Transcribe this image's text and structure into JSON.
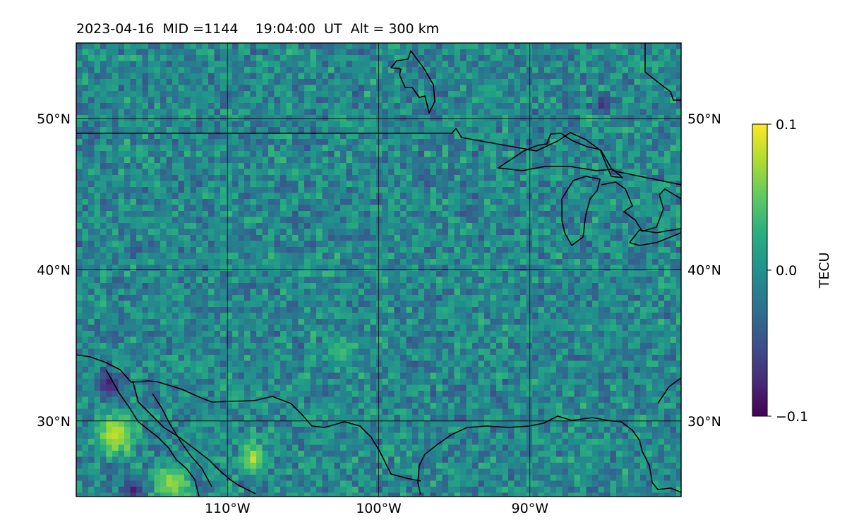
{
  "header": {
    "title": "2023-04-16  MID =1144    19:04:00  UT  Alt = 300 km"
  },
  "map": {
    "projection": "plate-carree",
    "lon_range": [
      -120,
      -80
    ],
    "lat_range": [
      25,
      55
    ],
    "lon_ticks": [
      {
        "value": -110,
        "label": "110°W"
      },
      {
        "value": -100,
        "label": "100°W"
      },
      {
        "value": -90,
        "label": "90°W"
      }
    ],
    "lat_ticks": [
      {
        "value": 30,
        "label": "30°N"
      },
      {
        "value": 40,
        "label": "40°N"
      },
      {
        "value": 50,
        "label": "50°N"
      }
    ],
    "gridlines": true,
    "coastlines_and_borders": true,
    "field": "differential TEC",
    "colormap": "viridis"
  },
  "colorbar": {
    "label": "TECU",
    "vmin": -0.1,
    "vmax": 0.1,
    "ticks": [
      {
        "value": 0.1,
        "label": "0.1"
      },
      {
        "value": 0.0,
        "label": "0.0"
      },
      {
        "value": -0.1,
        "label": "−0.1"
      }
    ]
  },
  "colors": {
    "frame": "#000000",
    "background": "#ffffff"
  }
}
